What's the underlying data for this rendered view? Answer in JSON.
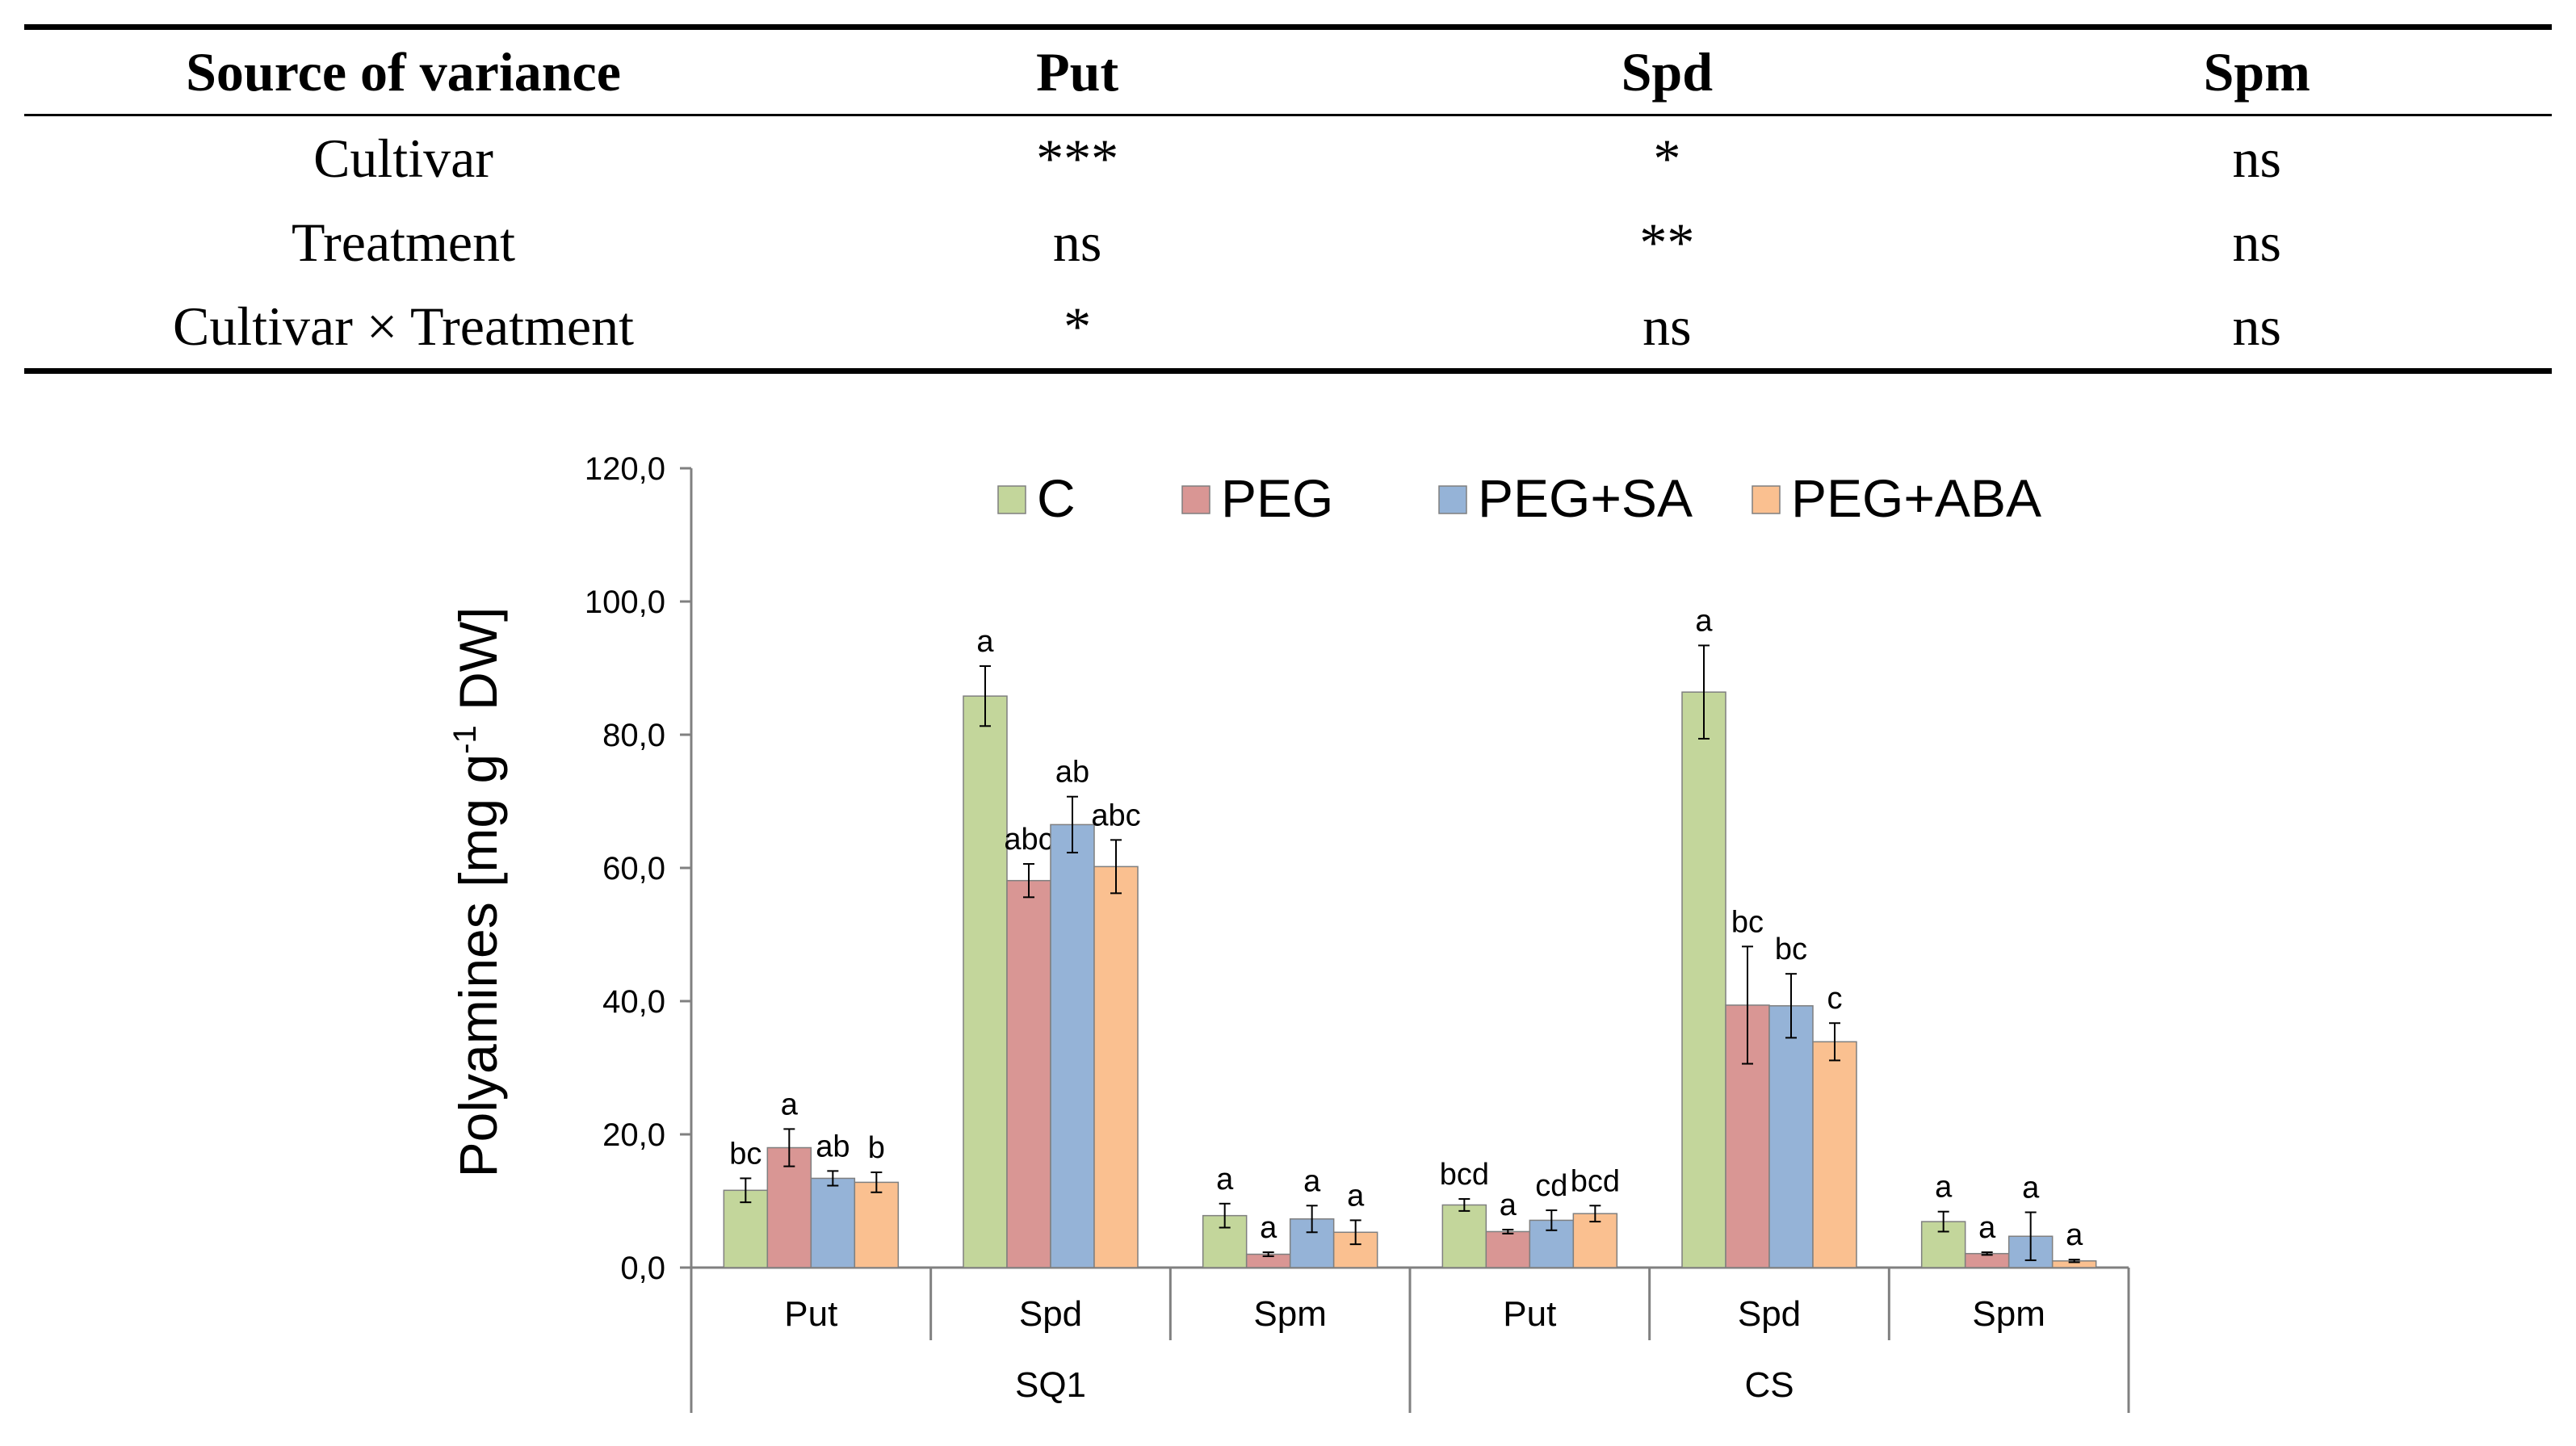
{
  "table": {
    "headers": [
      "Source of variance",
      "Put",
      "Spd",
      "Spm"
    ],
    "rows": [
      [
        "Cultivar",
        "***",
        "*",
        "ns"
      ],
      [
        "Treatment",
        "ns",
        "**",
        "ns"
      ],
      [
        "Cultivar × Treatment",
        "*",
        "ns",
        "ns"
      ]
    ]
  },
  "chart_data": {
    "type": "bar",
    "ylabel": "Polyamines [mg g-1 DW]",
    "ylabel_parts": {
      "main": "Polyamines [mg g",
      "superscript": "-1",
      "suffix": " DW]"
    },
    "ylim": [
      0,
      120
    ],
    "yticks": [
      "0,0",
      "20,0",
      "40,0",
      "60,0",
      "80,0",
      "100,0",
      "120,0"
    ],
    "grid": false,
    "legend_position": "top",
    "groups": [
      "SQ1",
      "CS"
    ],
    "categories": [
      "Put",
      "Spd",
      "Spm",
      "Put",
      "Spd",
      "Spm"
    ],
    "series": [
      {
        "name": "C",
        "color": "#c3d69b",
        "values": [
          11.6,
          85.8,
          7.8,
          9.4,
          86.4,
          6.9
        ],
        "errors": [
          1.8,
          4.5,
          1.8,
          0.9,
          7.0,
          1.5
        ],
        "labels": [
          "bc",
          "a",
          "a",
          "bcd",
          "a",
          "a"
        ]
      },
      {
        "name": "PEG",
        "color": "#d99694",
        "values": [
          18.0,
          58.1,
          2.0,
          5.4,
          39.4,
          2.1
        ],
        "errors": [
          2.8,
          2.5,
          0.3,
          0.3,
          8.8,
          0.2
        ],
        "labels": [
          "a",
          "abc",
          "a",
          "a",
          "bc",
          "a"
        ]
      },
      {
        "name": "PEG+SA",
        "color": "#95b3d7",
        "values": [
          13.4,
          66.5,
          7.3,
          7.1,
          39.3,
          4.7
        ],
        "errors": [
          1.1,
          4.2,
          2.0,
          1.5,
          4.8,
          3.6
        ],
        "labels": [
          "ab",
          "ab",
          "a",
          "cd",
          "bc",
          "a"
        ]
      },
      {
        "name": "PEG+ABA",
        "color": "#fac090",
        "values": [
          12.8,
          60.2,
          5.3,
          8.1,
          33.9,
          1.0
        ],
        "errors": [
          1.5,
          4.0,
          1.8,
          1.2,
          2.8,
          0.2
        ],
        "labels": [
          "b",
          "abc",
          "a",
          "bcd",
          "c",
          "a"
        ]
      }
    ]
  }
}
